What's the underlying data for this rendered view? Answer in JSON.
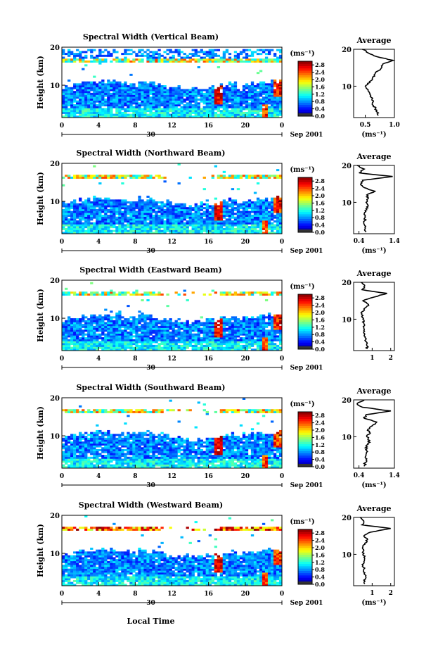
{
  "chart_data": [
    {
      "type": "heatmap",
      "title": "Spectral Width (Vertical Beam)",
      "ylabel": "Height (km)",
      "xticks": [
        "0",
        "4",
        "8",
        "12",
        "16",
        "20",
        "0"
      ],
      "yticks": [
        "10",
        "20"
      ],
      "day_label": "30",
      "date_label": "Sep 2001",
      "ylim": [
        1.5,
        20
      ],
      "colorbar": {
        "unit": "(ms⁻¹)",
        "ticks": [
          "0.0",
          "0.4",
          "0.8",
          "1.2",
          "1.6",
          "2.0",
          "2.4",
          "2.8"
        ],
        "range": [
          0,
          3.0
        ]
      },
      "average_profile": {
        "title": "Average",
        "xlabel": "(ms⁻¹)",
        "xticks": [
          "0.5",
          "1.0"
        ],
        "xlim": [
          0.3,
          1.0
        ],
        "yticks": [
          "10",
          "20"
        ],
        "height_km": [
          2,
          3,
          4,
          5,
          6,
          7,
          8,
          9,
          10,
          11,
          12,
          13,
          14,
          15,
          16,
          17,
          18,
          19,
          20
        ],
        "values": [
          0.72,
          0.7,
          0.68,
          0.62,
          0.64,
          0.6,
          0.58,
          0.55,
          0.5,
          0.58,
          0.62,
          0.65,
          0.7,
          0.78,
          0.8,
          0.98,
          0.7,
          0.55,
          0.45
        ]
      }
    },
    {
      "type": "heatmap",
      "title": "Spectral Width (Northward Beam)",
      "ylabel": "Height (km)",
      "xticks": [
        "0",
        "4",
        "8",
        "12",
        "16",
        "20",
        "0"
      ],
      "yticks": [
        "10",
        "20"
      ],
      "day_label": "30",
      "date_label": "Sep 2001",
      "ylim": [
        1.5,
        20
      ],
      "colorbar": {
        "unit": "(ms⁻¹)",
        "ticks": [
          "0.0",
          "0.4",
          "0.8",
          "1.2",
          "1.6",
          "2.0",
          "2.4",
          "2.8"
        ],
        "range": [
          0,
          3.0
        ]
      },
      "average_profile": {
        "title": "Average",
        "xlabel": "(ms⁻¹)",
        "xticks": [
          "0.4",
          "1.4"
        ],
        "xlim": [
          0.25,
          1.4
        ],
        "yticks": [
          "10",
          "20"
        ],
        "height_km": [
          2,
          3,
          4,
          5,
          6,
          7,
          8,
          9,
          10,
          11,
          12,
          13,
          14,
          15,
          16,
          17,
          18,
          19,
          20
        ],
        "values": [
          0.6,
          0.58,
          0.55,
          0.56,
          0.58,
          0.55,
          0.62,
          0.66,
          0.6,
          0.66,
          0.62,
          0.85,
          0.55,
          0.45,
          0.5,
          1.35,
          0.4,
          0.55,
          0.35
        ]
      }
    },
    {
      "type": "heatmap",
      "title": "Spectral Width (Eastward Beam)",
      "ylabel": "Height (km)",
      "xticks": [
        "0",
        "4",
        "8",
        "12",
        "16",
        "20",
        "0"
      ],
      "yticks": [
        "10",
        "20"
      ],
      "day_label": "30",
      "date_label": "Sep 2001",
      "ylim": [
        1.5,
        20
      ],
      "colorbar": {
        "unit": "(ms⁻¹)",
        "ticks": [
          "0.0",
          "0.4",
          "0.8",
          "1.2",
          "1.6",
          "2.0",
          "2.4",
          "2.8"
        ],
        "range": [
          0,
          3.0
        ]
      },
      "average_profile": {
        "title": "Average",
        "xlabel": "",
        "xticks": [
          "1",
          "2"
        ],
        "xlim": [
          0,
          2.2
        ],
        "yticks": [
          "10",
          "20"
        ],
        "height_km": [
          2,
          3,
          4,
          5,
          6,
          7,
          8,
          9,
          10,
          11,
          12,
          13,
          14,
          15,
          16,
          17,
          18,
          19,
          20
        ],
        "values": [
          0.75,
          0.7,
          0.65,
          0.62,
          0.6,
          0.55,
          0.52,
          0.55,
          0.5,
          0.5,
          0.45,
          0.6,
          0.8,
          0.5,
          1.1,
          1.8,
          0.45,
          0.6,
          0.4
        ]
      }
    },
    {
      "type": "heatmap",
      "title": "Spectral Width (Southward Beam)",
      "ylabel": "Height (km)",
      "xticks": [
        "0",
        "4",
        "8",
        "12",
        "16",
        "20",
        "0"
      ],
      "yticks": [
        "10",
        "20"
      ],
      "day_label": "30",
      "date_label": "Sep 2001",
      "ylim": [
        1.5,
        20
      ],
      "colorbar": {
        "unit": "(ms⁻¹)",
        "ticks": [
          "0.0",
          "0.4",
          "0.8",
          "1.2",
          "1.6",
          "2.0",
          "2.4",
          "2.8"
        ],
        "range": [
          0,
          3.0
        ]
      },
      "average_profile": {
        "title": "Average",
        "xlabel": "(ms⁻¹)",
        "xticks": [
          "0.4",
          "1.4"
        ],
        "xlim": [
          0.25,
          1.4
        ],
        "yticks": [
          "10",
          "20"
        ],
        "height_km": [
          2,
          3,
          4,
          5,
          6,
          7,
          8,
          9,
          10,
          11,
          12,
          13,
          14,
          15,
          16,
          17,
          18,
          19,
          20
        ],
        "values": [
          0.55,
          0.58,
          0.62,
          0.6,
          0.64,
          0.58,
          0.66,
          0.7,
          0.62,
          0.72,
          0.65,
          0.78,
          0.9,
          0.55,
          0.6,
          1.3,
          0.5,
          0.35,
          0.55
        ]
      }
    },
    {
      "type": "heatmap",
      "title": "Spectral Width (Westward Beam)",
      "ylabel": "Height (km)",
      "xlabel": "Local Time",
      "xticks": [
        "0",
        "4",
        "8",
        "12",
        "16",
        "20",
        "0"
      ],
      "yticks": [
        "10",
        "20"
      ],
      "day_label": "30",
      "date_label": "Sep 2001",
      "ylim": [
        1.5,
        20
      ],
      "colorbar": {
        "unit": "(ms⁻¹)",
        "ticks": [
          "0.0",
          "0.4",
          "0.8",
          "1.2",
          "1.6",
          "2.0",
          "2.4",
          "2.8"
        ],
        "range": [
          0,
          3.0
        ]
      },
      "average_profile": {
        "title": "Average",
        "xlabel": "(ms⁻¹)",
        "xticks": [
          "1",
          "2"
        ],
        "xlim": [
          0,
          2.2
        ],
        "yticks": [
          "10",
          "20"
        ],
        "height_km": [
          2,
          3,
          4,
          5,
          6,
          7,
          8,
          9,
          10,
          11,
          12,
          13,
          14,
          15,
          16,
          17,
          18,
          19,
          20
        ],
        "values": [
          0.6,
          0.55,
          0.65,
          0.6,
          0.55,
          0.5,
          0.55,
          0.6,
          0.5,
          0.55,
          0.5,
          0.6,
          0.75,
          0.55,
          0.9,
          2.0,
          0.45,
          0.55,
          0.35
        ]
      }
    }
  ]
}
